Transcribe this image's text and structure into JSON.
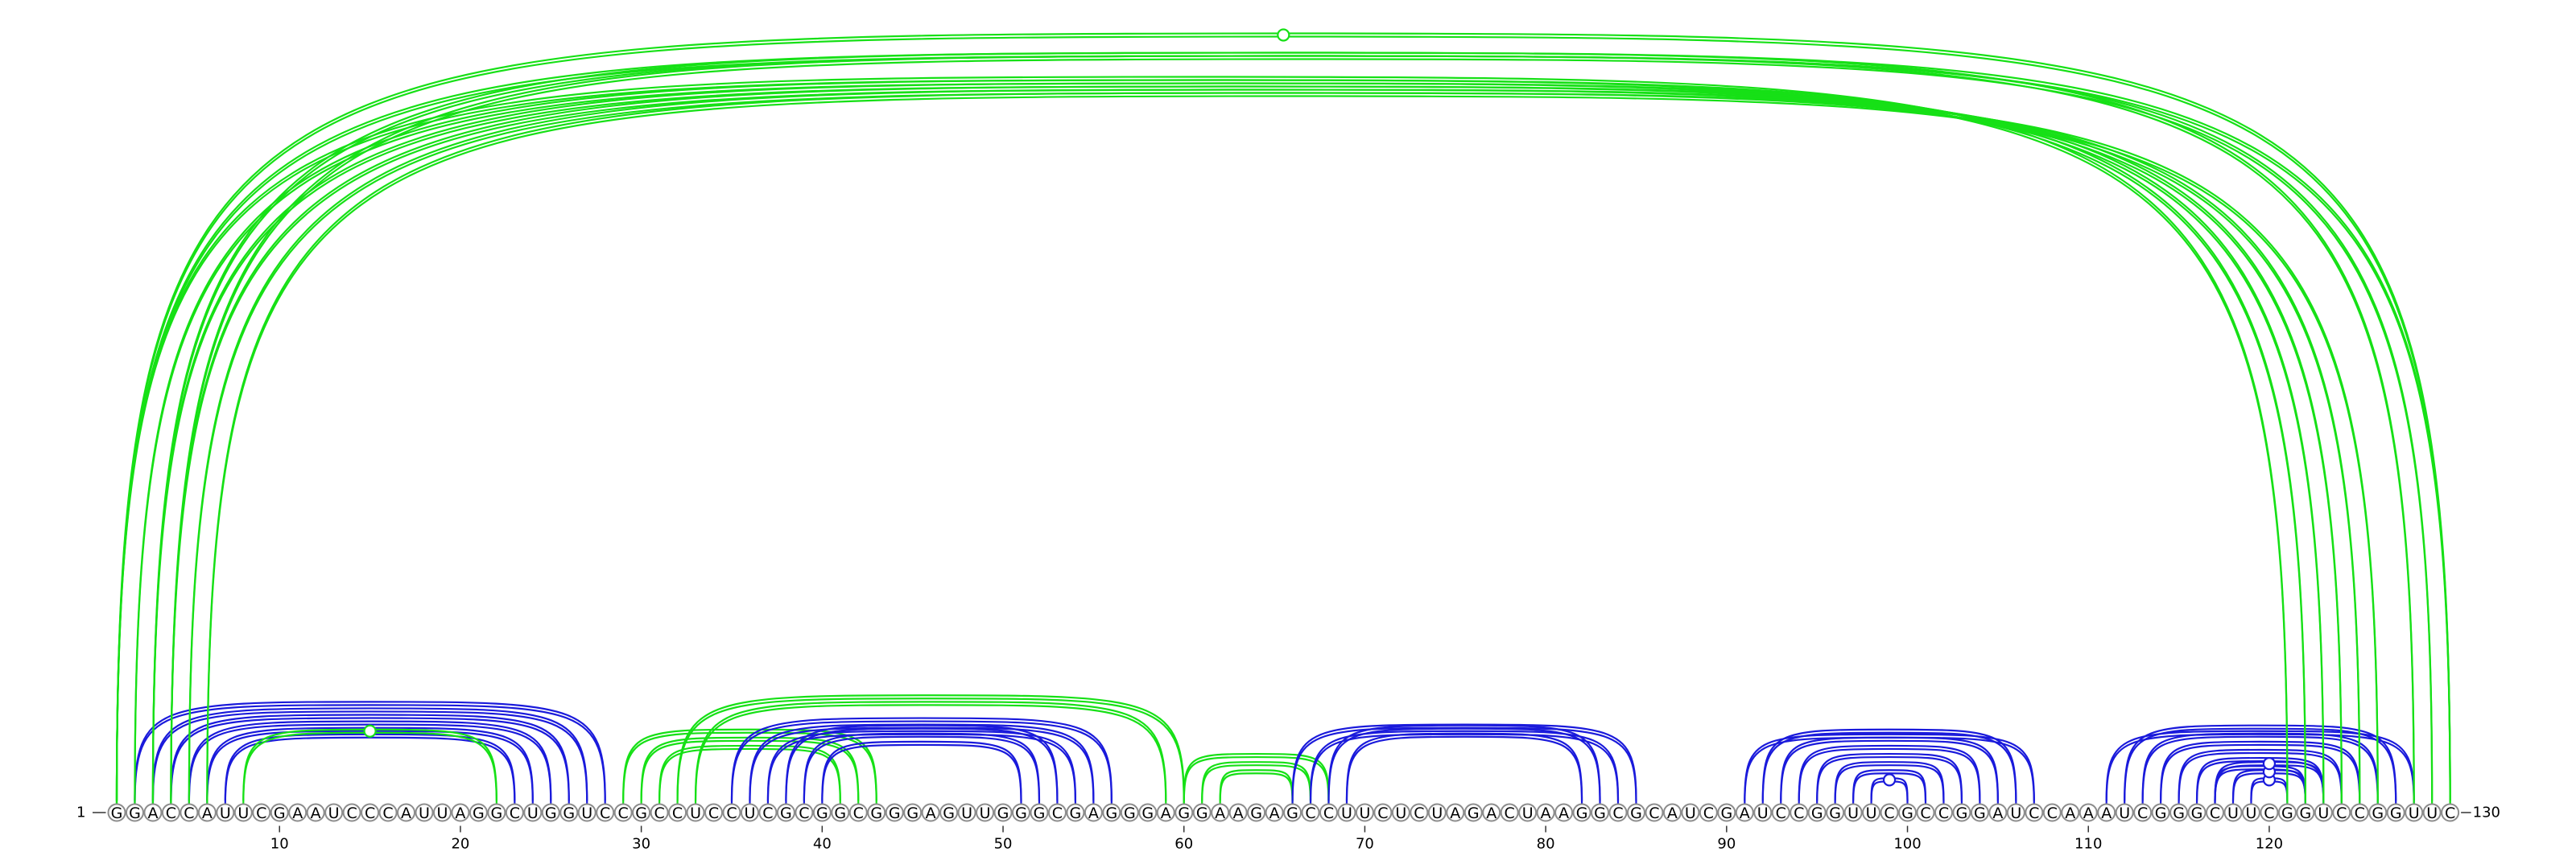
{
  "diagram": {
    "type": "rna-arc-diagram",
    "sequence": "GGACCAUUCGAAUCCCAUUAGGCUGGUCCGCCUCCUCGCGGCGGGAGUUGGGCGAGGGAGGAAGAGCCUUCUCUAGACUAAGGCGCAUCGAUCCGGUUCGCCGGAUCCAAAUCGGGCUUCGGUCCGGUUC",
    "start_label": "1",
    "end_label": "130",
    "tick_labels": [
      "10",
      "20",
      "30",
      "40",
      "50",
      "60",
      "70",
      "80",
      "90",
      "100",
      "110",
      "120"
    ],
    "colors": {
      "blue": "#1a1adb",
      "green": "#16e016"
    },
    "arc_groups": [
      {
        "color": "blue",
        "pairs": [
          [
            2,
            28
          ],
          [
            3,
            27
          ],
          [
            4,
            26
          ],
          [
            5,
            25
          ],
          [
            6,
            24
          ],
          [
            7,
            23
          ]
        ]
      },
      {
        "color": "green",
        "pairs": [
          [
            8,
            22
          ]
        ],
        "marker": true
      },
      {
        "color": "green",
        "pairs": [
          [
            29,
            43
          ],
          [
            30,
            42
          ],
          [
            31,
            41
          ]
        ]
      },
      {
        "color": "blue",
        "pairs": [
          [
            35,
            56
          ],
          [
            36,
            55
          ],
          [
            37,
            54
          ],
          [
            38,
            53
          ],
          [
            39,
            52
          ],
          [
            40,
            51
          ]
        ]
      },
      {
        "color": "green",
        "pairs": [
          [
            33,
            59
          ],
          [
            32,
            60
          ]
        ]
      },
      {
        "color": "green",
        "pairs": [
          [
            60,
            68
          ],
          [
            61,
            67
          ],
          [
            62,
            66
          ]
        ]
      },
      {
        "color": "blue",
        "pairs": [
          [
            66,
            85
          ],
          [
            67,
            84
          ],
          [
            68,
            83
          ],
          [
            69,
            82
          ]
        ]
      },
      {
        "color": "blue",
        "pairs": [
          [
            91,
            107
          ],
          [
            92,
            106
          ],
          [
            93,
            105
          ],
          [
            94,
            104
          ],
          [
            95,
            103
          ],
          [
            96,
            102
          ],
          [
            97,
            101
          ]
        ]
      },
      {
        "color": "blue",
        "pairs": [
          [
            98,
            100
          ]
        ],
        "marker": true
      },
      {
        "color": "blue",
        "pairs": [
          [
            111,
            128
          ],
          [
            112,
            127
          ],
          [
            113,
            126
          ],
          [
            114,
            125
          ],
          [
            115,
            124
          ],
          [
            116,
            123
          ],
          [
            117,
            122
          ]
        ]
      },
      {
        "color": "blue",
        "pairs": [
          [
            119,
            121
          ]
        ],
        "marker": true
      },
      {
        "color": "blue",
        "pairs": [
          [
            118,
            122
          ]
        ],
        "marker": true
      },
      {
        "color": "blue",
        "pairs": [
          [
            117,
            123
          ]
        ],
        "marker": true
      },
      {
        "color": "green",
        "pairs": [
          [
            1,
            121
          ],
          [
            2,
            122
          ],
          [
            3,
            123
          ],
          [
            4,
            124
          ],
          [
            5,
            125
          ],
          [
            6,
            126
          ],
          [
            1,
            130
          ]
        ]
      },
      {
        "color": "green",
        "pairs": [
          [
            1,
            130
          ]
        ],
        "marker": true
      },
      {
        "color": "green",
        "pairs": [
          [
            3,
            128
          ],
          [
            4,
            129
          ]
        ]
      }
    ]
  }
}
